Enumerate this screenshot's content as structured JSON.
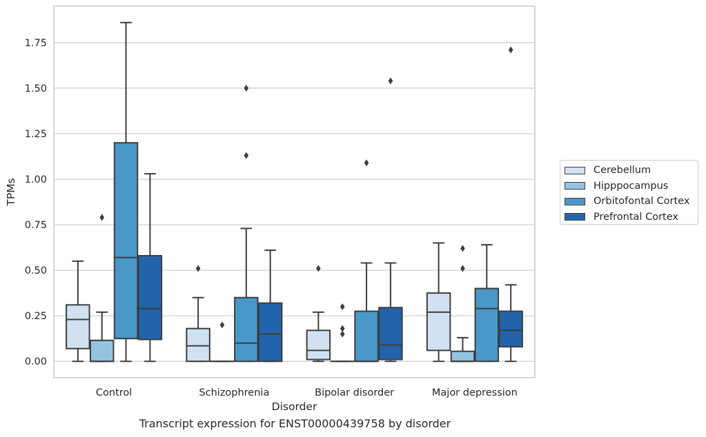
{
  "chart_data": {
    "type": "box",
    "title": "Transcript expression for ENST00000439758 by disorder",
    "xlabel": "Disorder",
    "ylabel": "TPMs",
    "ylim": [
      -0.09,
      1.95
    ],
    "yticks": [
      "0.00",
      "0.25",
      "0.50",
      "0.75",
      "1.00",
      "1.25",
      "1.50",
      "1.75"
    ],
    "categories": [
      "Control",
      "Schizophrenia",
      "Bipolar disorder",
      "Major depression"
    ],
    "grid": "horizontal",
    "legend_position": "right",
    "series": [
      {
        "name": "Cerebellum",
        "color": "#d0e1f2",
        "boxes": [
          {
            "whisker_low": 0.0,
            "q1": 0.07,
            "median": 0.23,
            "q3": 0.31,
            "whisker_high": 0.55,
            "outliers": []
          },
          {
            "whisker_low": 0.0,
            "q1": 0.0,
            "median": 0.085,
            "q3": 0.18,
            "whisker_high": 0.35,
            "outliers": [
              0.51
            ]
          },
          {
            "whisker_low": 0.0,
            "q1": 0.01,
            "median": 0.06,
            "q3": 0.17,
            "whisker_high": 0.27,
            "outliers": [
              0.51
            ]
          },
          {
            "whisker_low": 0.0,
            "q1": 0.06,
            "median": 0.27,
            "q3": 0.375,
            "whisker_high": 0.65,
            "outliers": []
          }
        ]
      },
      {
        "name": "Hipppocampus",
        "color": "#94c4df",
        "boxes": [
          {
            "whisker_low": 0.0,
            "q1": 0.0,
            "median": 0.0,
            "q3": 0.115,
            "whisker_high": 0.27,
            "outliers": [
              0.79
            ]
          },
          {
            "whisker_low": 0.0,
            "q1": 0.0,
            "median": 0.0,
            "q3": 0.0,
            "whisker_high": 0.0,
            "outliers": [
              0.2
            ]
          },
          {
            "whisker_low": 0.0,
            "q1": 0.0,
            "median": 0.0,
            "q3": 0.0,
            "whisker_high": 0.0,
            "outliers": [
              0.15,
              0.18,
              0.3
            ]
          },
          {
            "whisker_low": 0.0,
            "q1": 0.0,
            "median": 0.0,
            "q3": 0.055,
            "whisker_high": 0.13,
            "outliers": [
              0.51,
              0.62
            ]
          }
        ]
      },
      {
        "name": "Orbitofontal Cortex",
        "color": "#4a98c9",
        "boxes": [
          {
            "whisker_low": 0.0,
            "q1": 0.125,
            "median": 0.57,
            "q3": 1.2,
            "whisker_high": 1.86,
            "outliers": []
          },
          {
            "whisker_low": 0.0,
            "q1": 0.0,
            "median": 0.1,
            "q3": 0.35,
            "whisker_high": 0.73,
            "outliers": [
              1.13,
              1.5
            ]
          },
          {
            "whisker_low": 0.0,
            "q1": 0.0,
            "median": 0.0,
            "q3": 0.275,
            "whisker_high": 0.54,
            "outliers": [
              1.09
            ]
          },
          {
            "whisker_low": 0.0,
            "q1": 0.0,
            "median": 0.29,
            "q3": 0.4,
            "whisker_high": 0.64,
            "outliers": []
          }
        ]
      },
      {
        "name": "Prefrontal Cortex",
        "color": "#2164ab",
        "boxes": [
          {
            "whisker_low": 0.0,
            "q1": 0.12,
            "median": 0.29,
            "q3": 0.58,
            "whisker_high": 1.03,
            "outliers": []
          },
          {
            "whisker_low": 0.0,
            "q1": 0.0,
            "median": 0.15,
            "q3": 0.32,
            "whisker_high": 0.61,
            "outliers": []
          },
          {
            "whisker_low": 0.0,
            "q1": 0.01,
            "median": 0.09,
            "q3": 0.295,
            "whisker_high": 0.54,
            "outliers": [
              1.54
            ]
          },
          {
            "whisker_low": 0.0,
            "q1": 0.08,
            "median": 0.17,
            "q3": 0.275,
            "whisker_high": 0.42,
            "outliers": [
              1.71
            ]
          }
        ]
      }
    ]
  }
}
